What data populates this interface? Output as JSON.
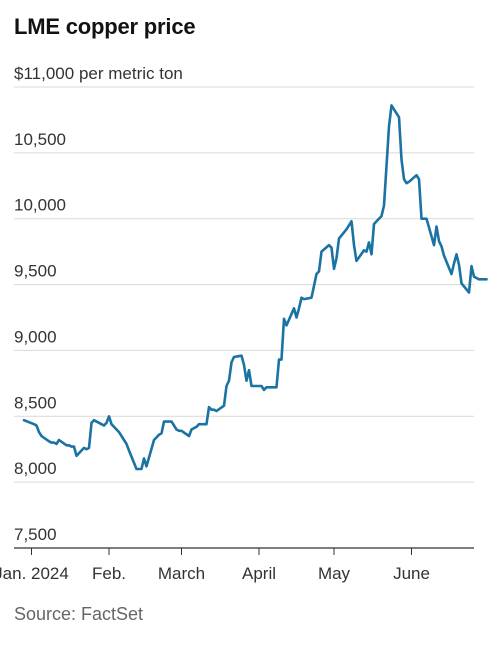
{
  "title": "LME copper price",
  "unit_note": "per metric ton",
  "source": "Source: FactSet",
  "colors": {
    "line": "#1a73a3",
    "grid": "#d9d9d9",
    "axis": "#333333"
  },
  "chart_data": {
    "type": "line",
    "title": "LME copper price",
    "ylabel": "per metric ton",
    "ylim": [
      7500,
      11000
    ],
    "yticks": [
      7500,
      8000,
      8500,
      9000,
      9500,
      10000,
      10500,
      11000
    ],
    "ytick_labels": [
      "7,500",
      "8,000",
      "8,500",
      "9,000",
      "9,500",
      "10,000",
      "10,500",
      "$11,000"
    ],
    "xlim": [
      "2023-12-25",
      "2024-06-26"
    ],
    "xticks": [
      {
        "date": "2024-01-01",
        "label": "Jan. 2024"
      },
      {
        "date": "2024-02-01",
        "label": "Feb."
      },
      {
        "date": "2024-03-01",
        "label": "March"
      },
      {
        "date": "2024-04-01",
        "label": "April"
      },
      {
        "date": "2024-05-01",
        "label": "May"
      },
      {
        "date": "2024-06-01",
        "label": "June"
      }
    ],
    "grid": true,
    "series": [
      {
        "name": "",
        "points": [
          [
            "2023-12-29",
            8470
          ],
          [
            "2024-01-02",
            8440
          ],
          [
            "2024-01-03",
            8430
          ],
          [
            "2024-01-04",
            8380
          ],
          [
            "2024-01-05",
            8350
          ],
          [
            "2024-01-08",
            8310
          ],
          [
            "2024-01-09",
            8300
          ],
          [
            "2024-01-10",
            8300
          ],
          [
            "2024-01-11",
            8290
          ],
          [
            "2024-01-12",
            8320
          ],
          [
            "2024-01-15",
            8280
          ],
          [
            "2024-01-16",
            8280
          ],
          [
            "2024-01-17",
            8270
          ],
          [
            "2024-01-18",
            8270
          ],
          [
            "2024-01-19",
            8200
          ],
          [
            "2024-01-22",
            8260
          ],
          [
            "2024-01-23",
            8250
          ],
          [
            "2024-01-24",
            8260
          ],
          [
            "2024-01-25",
            8450
          ],
          [
            "2024-01-26",
            8470
          ],
          [
            "2024-01-29",
            8440
          ],
          [
            "2024-01-30",
            8430
          ],
          [
            "2024-01-31",
            8450
          ],
          [
            "2024-02-01",
            8500
          ],
          [
            "2024-02-02",
            8440
          ],
          [
            "2024-02-05",
            8380
          ],
          [
            "2024-02-06",
            8350
          ],
          [
            "2024-02-07",
            8320
          ],
          [
            "2024-02-08",
            8290
          ],
          [
            "2024-02-09",
            8240
          ],
          [
            "2024-02-12",
            8100
          ],
          [
            "2024-02-13",
            8100
          ],
          [
            "2024-02-14",
            8100
          ],
          [
            "2024-02-15",
            8180
          ],
          [
            "2024-02-16",
            8120
          ],
          [
            "2024-02-19",
            8320
          ],
          [
            "2024-02-20",
            8340
          ],
          [
            "2024-02-21",
            8360
          ],
          [
            "2024-02-22",
            8370
          ],
          [
            "2024-02-23",
            8460
          ],
          [
            "2024-02-26",
            8460
          ],
          [
            "2024-02-27",
            8430
          ],
          [
            "2024-02-28",
            8400
          ],
          [
            "2024-02-29",
            8390
          ],
          [
            "2024-03-01",
            8390
          ],
          [
            "2024-03-04",
            8350
          ],
          [
            "2024-03-05",
            8400
          ],
          [
            "2024-03-06",
            8410
          ],
          [
            "2024-03-07",
            8420
          ],
          [
            "2024-03-08",
            8440
          ],
          [
            "2024-03-11",
            8440
          ],
          [
            "2024-03-12",
            8570
          ],
          [
            "2024-03-13",
            8550
          ],
          [
            "2024-03-14",
            8550
          ],
          [
            "2024-03-15",
            8540
          ],
          [
            "2024-03-18",
            8580
          ],
          [
            "2024-03-19",
            8730
          ],
          [
            "2024-03-20",
            8770
          ],
          [
            "2024-03-21",
            8910
          ],
          [
            "2024-03-22",
            8950
          ],
          [
            "2024-03-25",
            8960
          ],
          [
            "2024-03-26",
            8890
          ],
          [
            "2024-03-27",
            8770
          ],
          [
            "2024-03-28",
            8850
          ],
          [
            "2024-03-29",
            8730
          ],
          [
            "2024-04-01",
            8730
          ],
          [
            "2024-04-02",
            8730
          ],
          [
            "2024-04-03",
            8700
          ],
          [
            "2024-04-04",
            8720
          ],
          [
            "2024-04-05",
            8720
          ],
          [
            "2024-04-08",
            8720
          ],
          [
            "2024-04-09",
            8930
          ],
          [
            "2024-04-10",
            8930
          ],
          [
            "2024-04-11",
            9240
          ],
          [
            "2024-04-12",
            9190
          ],
          [
            "2024-04-15",
            9320
          ],
          [
            "2024-04-16",
            9250
          ],
          [
            "2024-04-17",
            9320
          ],
          [
            "2024-04-18",
            9400
          ],
          [
            "2024-04-19",
            9390
          ],
          [
            "2024-04-22",
            9400
          ],
          [
            "2024-04-23",
            9490
          ],
          [
            "2024-04-24",
            9580
          ],
          [
            "2024-04-25",
            9600
          ],
          [
            "2024-04-26",
            9750
          ],
          [
            "2024-04-29",
            9800
          ],
          [
            "2024-04-30",
            9780
          ],
          [
            "2024-05-01",
            9620
          ],
          [
            "2024-05-02",
            9700
          ],
          [
            "2024-05-03",
            9850
          ],
          [
            "2024-05-06",
            9920
          ],
          [
            "2024-05-07",
            9950
          ],
          [
            "2024-05-08",
            9980
          ],
          [
            "2024-05-09",
            9800
          ],
          [
            "2024-05-10",
            9680
          ],
          [
            "2024-05-13",
            9760
          ],
          [
            "2024-05-14",
            9750
          ],
          [
            "2024-05-15",
            9820
          ],
          [
            "2024-05-16",
            9730
          ],
          [
            "2024-05-17",
            9960
          ],
          [
            "2024-05-20",
            10020
          ],
          [
            "2024-05-21",
            10100
          ],
          [
            "2024-05-22",
            10400
          ],
          [
            "2024-05-23",
            10700
          ],
          [
            "2024-05-24",
            10860
          ],
          [
            "2024-05-27",
            10770
          ],
          [
            "2024-05-28",
            10450
          ],
          [
            "2024-05-29",
            10300
          ],
          [
            "2024-05-30",
            10270
          ],
          [
            "2024-05-31",
            10280
          ],
          [
            "2024-06-03",
            10330
          ],
          [
            "2024-06-04",
            10300
          ],
          [
            "2024-06-05",
            10000
          ],
          [
            "2024-06-06",
            10000
          ],
          [
            "2024-06-07",
            10000
          ],
          [
            "2024-06-10",
            9800
          ],
          [
            "2024-06-11",
            9940
          ],
          [
            "2024-06-12",
            9830
          ],
          [
            "2024-06-13",
            9790
          ],
          [
            "2024-06-14",
            9720
          ],
          [
            "2024-06-17",
            9580
          ],
          [
            "2024-06-18",
            9660
          ],
          [
            "2024-06-19",
            9730
          ],
          [
            "2024-06-20",
            9650
          ],
          [
            "2024-06-21",
            9510
          ],
          [
            "2024-06-24",
            9440
          ],
          [
            "2024-06-25",
            9640
          ],
          [
            "2024-06-26",
            9560
          ],
          [
            "2024-06-27",
            9550
          ],
          [
            "2024-06-28",
            9540
          ],
          [
            "2024-07-01",
            9540
          ]
        ]
      }
    ]
  }
}
